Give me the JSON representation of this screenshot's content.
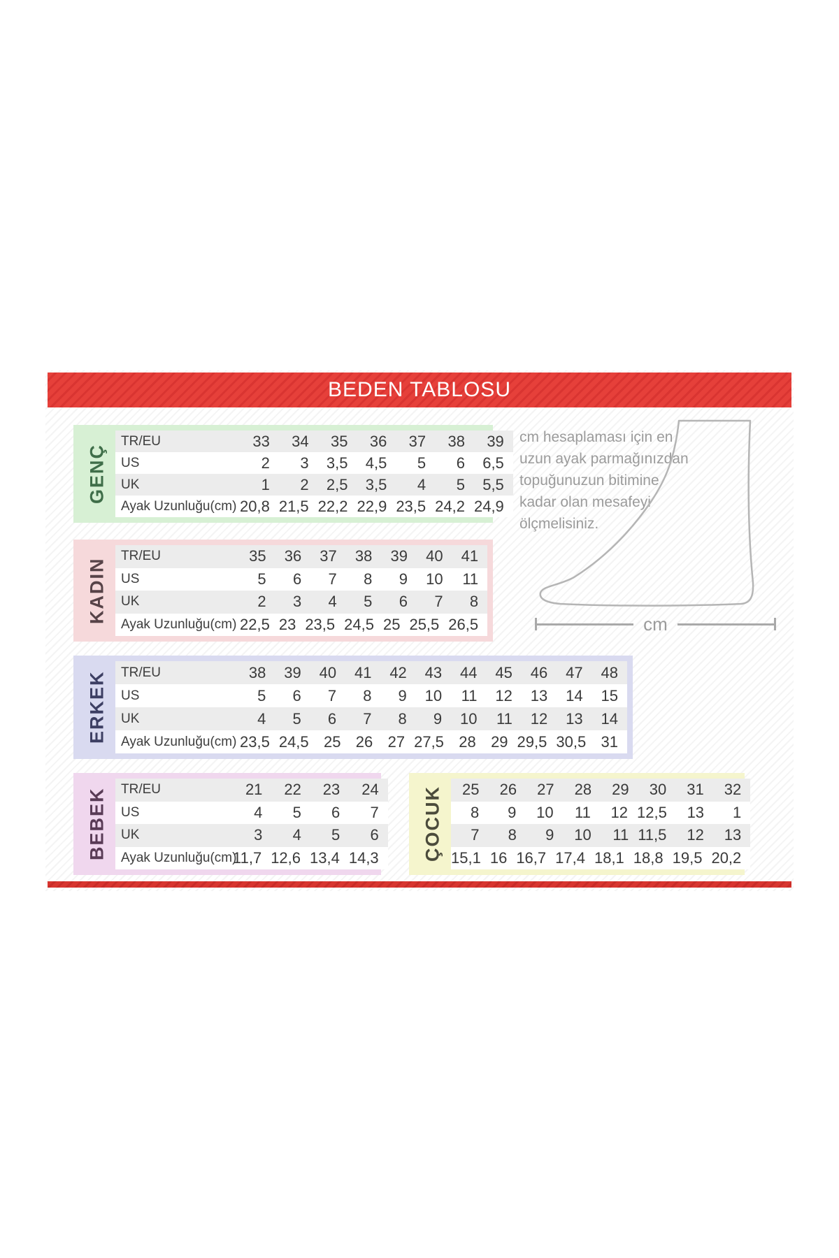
{
  "header": {
    "title": "BEDEN TABLOSU"
  },
  "colors": {
    "bar_red": "#e6403a",
    "bar_red_stripe": "#d93431",
    "row_alt": "#ececec",
    "cell_text": "#3a3a3a",
    "note_gray": "#9b9b9b",
    "foot_outline": "#b5b5b5"
  },
  "row_labels": [
    "TR/EU",
    "US",
    "UK",
    "Ayak Uzunluğu(cm)"
  ],
  "tables": [
    {
      "id": "genc",
      "label": "GENÇ",
      "has_row_labels": true,
      "colors": {
        "bg": "#d7f0d4",
        "text": "#3f6e49"
      },
      "rows": [
        [
          "33",
          "34",
          "35",
          "36",
          "37",
          "38",
          "39"
        ],
        [
          "2",
          "3",
          "3,5",
          "4,5",
          "5",
          "6",
          "6,5"
        ],
        [
          "1",
          "2",
          "2,5",
          "3,5",
          "4",
          "5",
          "5,5"
        ],
        [
          "20,8",
          "21,5",
          "22,2",
          "22,9",
          "23,5",
          "24,2",
          "24,9"
        ]
      ]
    },
    {
      "id": "kadin",
      "label": "KADIN",
      "has_row_labels": true,
      "colors": {
        "bg": "#f6d9db",
        "text": "#574348"
      },
      "rows": [
        [
          "35",
          "36",
          "37",
          "38",
          "39",
          "40",
          "41"
        ],
        [
          "5",
          "6",
          "7",
          "8",
          "9",
          "10",
          "11"
        ],
        [
          "2",
          "3",
          "4",
          "5",
          "6",
          "7",
          "8"
        ],
        [
          "22,5",
          "23",
          "23,5",
          "24,5",
          "25",
          "25,5",
          "26,5"
        ]
      ]
    },
    {
      "id": "erkek",
      "label": "ERKEK",
      "has_row_labels": true,
      "colors": {
        "bg": "#d9daf0",
        "text": "#3d3f63"
      },
      "rows": [
        [
          "38",
          "39",
          "40",
          "41",
          "42",
          "43",
          "44",
          "45",
          "46",
          "47",
          "48"
        ],
        [
          "5",
          "6",
          "7",
          "8",
          "9",
          "10",
          "11",
          "12",
          "13",
          "14",
          "15"
        ],
        [
          "4",
          "5",
          "6",
          "7",
          "8",
          "9",
          "10",
          "11",
          "12",
          "13",
          "14"
        ],
        [
          "23,5",
          "24,5",
          "25",
          "26",
          "27",
          "27,5",
          "28",
          "29",
          "29,5",
          "30,5",
          "31"
        ]
      ]
    },
    {
      "id": "bebek",
      "label": "BEBEK",
      "has_row_labels": true,
      "colors": {
        "bg": "#f0d7ee",
        "text": "#593b56"
      },
      "rows": [
        [
          "21",
          "22",
          "23",
          "24"
        ],
        [
          "4",
          "5",
          "6",
          "7"
        ],
        [
          "3",
          "4",
          "5",
          "6"
        ],
        [
          "11,7",
          "12,6",
          "13,4",
          "14,3"
        ]
      ]
    },
    {
      "id": "cocuk",
      "label": "ÇOCUK",
      "has_row_labels": false,
      "colors": {
        "bg": "#f5f5cd",
        "text": "#4b4b3b"
      },
      "rows": [
        [
          "25",
          "26",
          "27",
          "28",
          "29",
          "30",
          "31",
          "32"
        ],
        [
          "8",
          "9",
          "10",
          "11",
          "12",
          "12,5",
          "13",
          "1"
        ],
        [
          "7",
          "8",
          "9",
          "10",
          "11",
          "11,5",
          "12",
          "13"
        ],
        [
          "15,1",
          "16",
          "16,7",
          "17,4",
          "18,1",
          "18,8",
          "19,5",
          "20,2"
        ]
      ]
    }
  ],
  "note": {
    "lines": [
      "cm hesaplaması için en",
      "uzun ayak parmağınızdan",
      "topuğunuzun bitimine",
      "kadar olan mesafeyi",
      "ölçmelisiniz."
    ]
  },
  "measure": {
    "unit": "cm"
  }
}
